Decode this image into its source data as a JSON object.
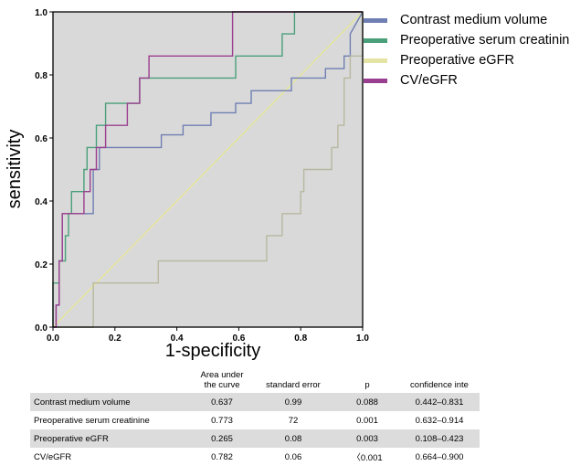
{
  "chart_data": {
    "type": "line",
    "xlabel": "1-specificity",
    "ylabel": "sensitivity",
    "xlim": [
      0,
      1
    ],
    "ylim": [
      0,
      1
    ],
    "x_ticks": [
      "0.0",
      "0.2",
      "0.4",
      "0.6",
      "0.8",
      "1.0"
    ],
    "y_ticks": [
      "0.0",
      "0.2",
      "0.4",
      "0.6",
      "0.8",
      "1.0"
    ],
    "grid": false,
    "legend_position": "right",
    "series": [
      {
        "name": "Contrast medium volume",
        "color": "#6f7fb3",
        "x": [
          0,
          0.01,
          0.01,
          0.02,
          0.02,
          0.03,
          0.03,
          0.13,
          0.13,
          0.15,
          0.15,
          0.17,
          0.17,
          0.35,
          0.35,
          0.42,
          0.42,
          0.51,
          0.51,
          0.59,
          0.59,
          0.64,
          0.64,
          0.77,
          0.77,
          0.88,
          0.88,
          0.94,
          0.94,
          0.96,
          0.96,
          1.0
        ],
        "y": [
          0,
          0,
          0.07,
          0.07,
          0.21,
          0.21,
          0.36,
          0.36,
          0.5,
          0.5,
          0.57,
          0.57,
          0.57,
          0.57,
          0.61,
          0.61,
          0.64,
          0.64,
          0.68,
          0.68,
          0.71,
          0.71,
          0.75,
          0.75,
          0.79,
          0.79,
          0.82,
          0.82,
          0.86,
          0.86,
          0.93,
          1.0
        ]
      },
      {
        "name": "Preoperative serum creatinine",
        "color": "#4aa07a",
        "x": [
          0,
          0,
          0.02,
          0.02,
          0.04,
          0.04,
          0.05,
          0.05,
          0.06,
          0.06,
          0.1,
          0.1,
          0.11,
          0.11,
          0.14,
          0.14,
          0.17,
          0.17,
          0.28,
          0.28,
          0.35,
          0.35,
          0.59,
          0.59,
          0.63,
          0.63,
          0.74,
          0.74,
          0.78,
          0.78,
          1.0
        ],
        "y": [
          0,
          0.14,
          0.14,
          0.21,
          0.21,
          0.29,
          0.29,
          0.36,
          0.36,
          0.43,
          0.43,
          0.5,
          0.5,
          0.57,
          0.57,
          0.64,
          0.64,
          0.71,
          0.71,
          0.79,
          0.79,
          0.79,
          0.79,
          0.86,
          0.86,
          0.86,
          0.86,
          0.93,
          0.93,
          1.0,
          1.0
        ]
      },
      {
        "name": "Preoperative eGFR",
        "color": "#b8b8a0",
        "x": [
          0,
          0.13,
          0.13,
          0.34,
          0.34,
          0.6,
          0.6,
          0.64,
          0.64,
          0.69,
          0.69,
          0.74,
          0.74,
          0.8,
          0.8,
          0.81,
          0.81,
          0.9,
          0.9,
          0.92,
          0.92,
          0.94,
          0.94,
          0.96,
          0.96,
          1.0,
          1.0
        ],
        "y": [
          0,
          0,
          0.14,
          0.14,
          0.21,
          0.21,
          0.21,
          0.21,
          0.21,
          0.21,
          0.29,
          0.29,
          0.36,
          0.36,
          0.43,
          0.43,
          0.5,
          0.5,
          0.57,
          0.57,
          0.64,
          0.64,
          0.79,
          0.79,
          0.86,
          0.86,
          1.0
        ]
      },
      {
        "name": "CV/eGFR",
        "color": "#9a3f8f",
        "x": [
          0,
          0.01,
          0.01,
          0.02,
          0.02,
          0.03,
          0.03,
          0.1,
          0.1,
          0.12,
          0.12,
          0.14,
          0.14,
          0.17,
          0.17,
          0.24,
          0.24,
          0.28,
          0.28,
          0.31,
          0.31,
          0.34,
          0.34,
          0.58,
          0.58,
          0.68,
          0.68,
          1.0
        ],
        "y": [
          0,
          0,
          0.07,
          0.07,
          0.21,
          0.21,
          0.36,
          0.36,
          0.43,
          0.43,
          0.5,
          0.5,
          0.57,
          0.57,
          0.64,
          0.64,
          0.71,
          0.71,
          0.79,
          0.79,
          0.86,
          0.86,
          0.86,
          0.86,
          1.0,
          1.0,
          1.0,
          1.0
        ]
      }
    ],
    "reference_line": {
      "color": "#e8e890",
      "x": [
        0,
        1
      ],
      "y": [
        0,
        1
      ]
    }
  },
  "table": {
    "headers": [
      "",
      "Area under the curve",
      "standard error",
      "p",
      "confidence inte"
    ],
    "rows": [
      {
        "name": "Contrast medium volume",
        "auc": "0.637",
        "se": "0.99",
        "p": "0.088",
        "ci": "0.442–0.831"
      },
      {
        "name": "Preoperative serum creatinine",
        "auc": "0.773",
        "se": "72",
        "p": "0.001",
        "ci": "0.632–0.914"
      },
      {
        "name": "Preoperative eGFR",
        "auc": "0.265",
        "se": "0.08",
        "p": "0.003",
        "ci": "0.108–0.423"
      },
      {
        "name": "CV/eGFR",
        "auc": "0.782",
        "se": "0.06",
        "p": "〈0.001",
        "ci": "0.664–0.900"
      }
    ]
  }
}
